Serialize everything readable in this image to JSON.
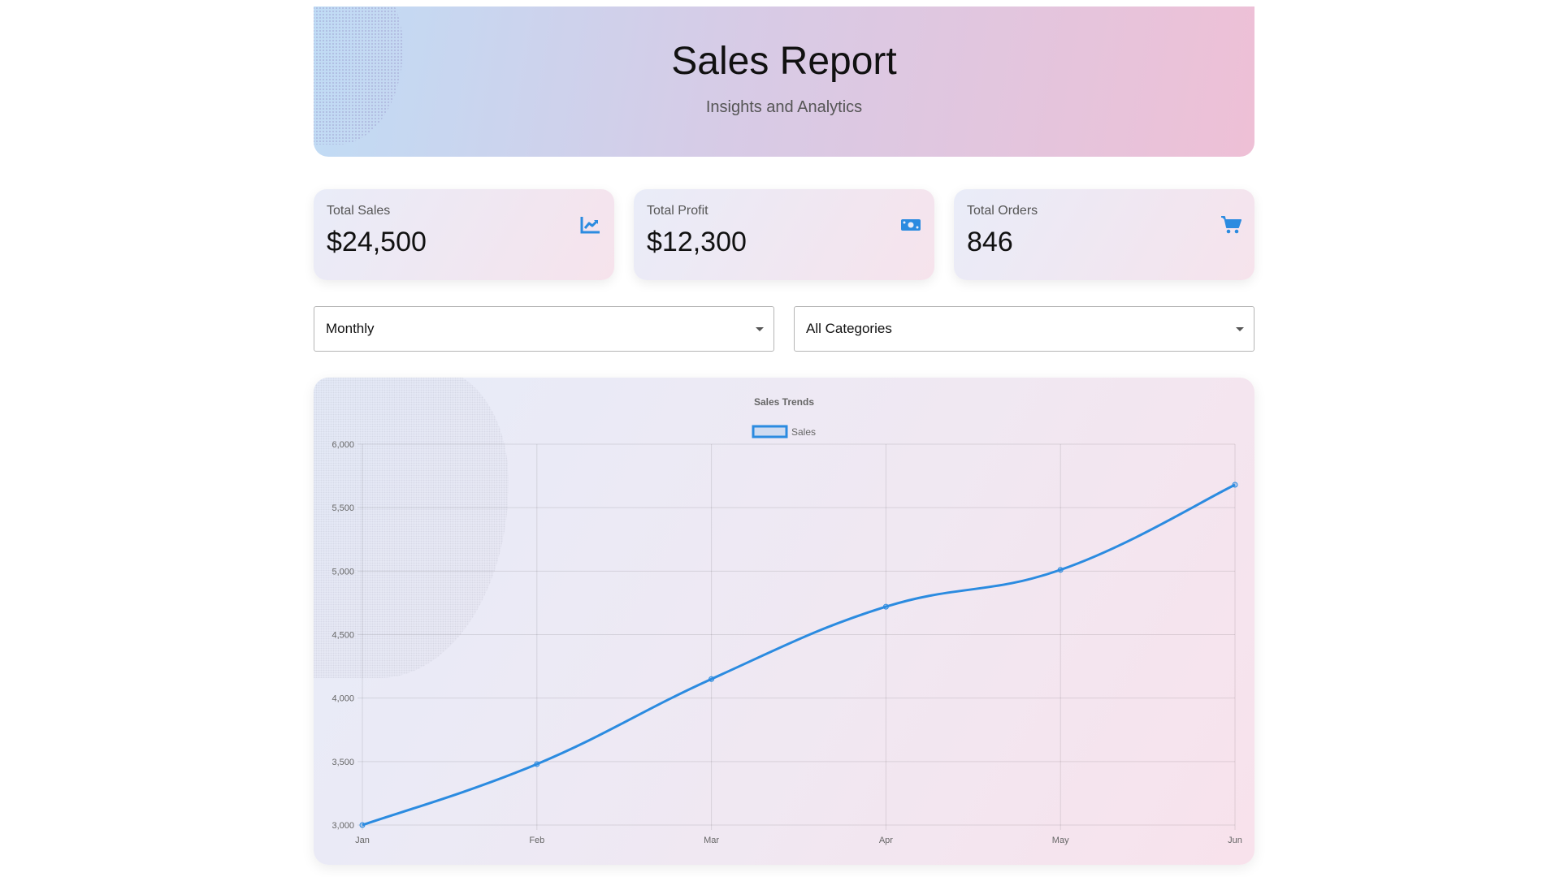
{
  "header": {
    "title": "Sales Report",
    "subtitle": "Insights and Analytics"
  },
  "cards": [
    {
      "label": "Total Sales",
      "value": "$24,500",
      "icon": "chart-line-icon"
    },
    {
      "label": "Total Profit",
      "value": "$12,300",
      "icon": "money-bill-icon"
    },
    {
      "label": "Total Orders",
      "value": "846",
      "icon": "shopping-cart-icon"
    }
  ],
  "filters": {
    "period": {
      "selected": "Monthly"
    },
    "category": {
      "selected": "All Categories"
    }
  },
  "colors": {
    "accent": "#2b8be0",
    "icon": "#2b8be0"
  },
  "chart_data": {
    "type": "line",
    "title": "Sales Trends",
    "categories": [
      "Jan",
      "Feb",
      "Mar",
      "Apr",
      "May",
      "Jun"
    ],
    "series": [
      {
        "name": "Sales",
        "values": [
          3000,
          3480,
          4150,
          4720,
          5010,
          5680
        ],
        "color": "#2b8be0"
      }
    ],
    "ylim": [
      3000,
      6000
    ],
    "yticks": [
      3000,
      3500,
      4000,
      4500,
      5000,
      5500,
      6000
    ],
    "ytick_labels": [
      "3,000",
      "3,500",
      "4,000",
      "4,500",
      "5,000",
      "5,500",
      "6,000"
    ],
    "grid": true,
    "legend": "top-center",
    "xlabel": "",
    "ylabel": ""
  }
}
